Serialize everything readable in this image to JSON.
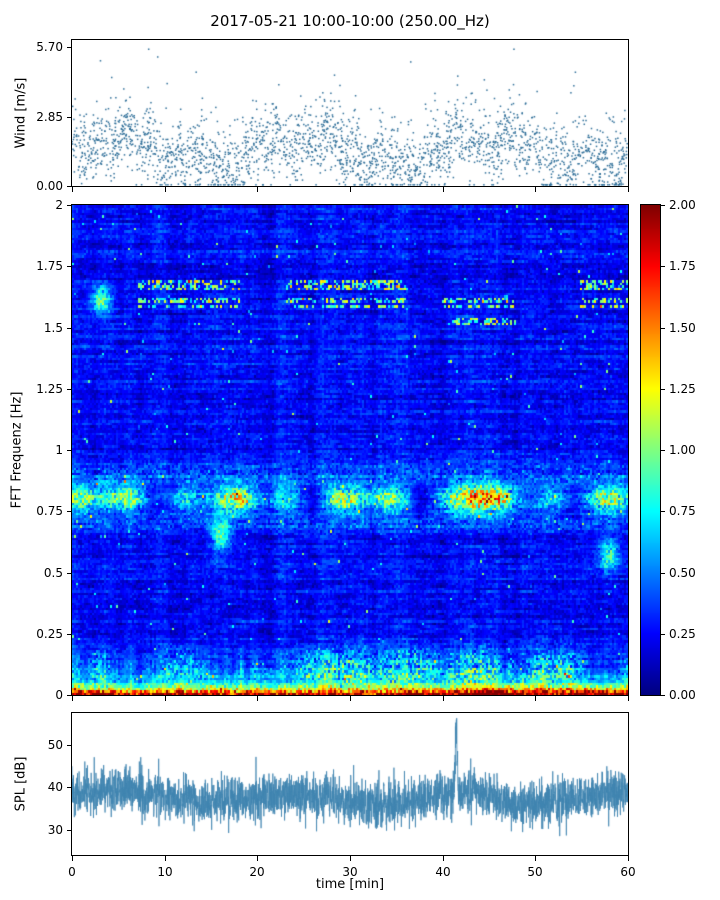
{
  "title": "2017-05-21 10:00-10:00 (250.00_Hz)",
  "chart_data": [
    {
      "type": "scatter",
      "name": "wind-speed",
      "ylabel": "Wind [m/s]",
      "xlim": [
        0,
        60
      ],
      "ylim": [
        0,
        6.0
      ],
      "yticks": [
        "0.00",
        "2.85",
        "5.70"
      ],
      "ytick_values": [
        0,
        2.85,
        5.7
      ],
      "marker_color": "#2e6e98",
      "n_points": 2600,
      "summary": {
        "mean": 1.7,
        "min": 0.05,
        "max": 5.65,
        "description": "dense noisy wind-speed scatter, gusty clusters, occasional gusts to ~5.6 m/s"
      }
    },
    {
      "type": "heatmap",
      "name": "fft-spectrogram",
      "ylabel": "FFT Frequenz [Hz]",
      "xlim": [
        0,
        60
      ],
      "ylim": [
        0,
        2
      ],
      "yticks": [
        "0",
        "0.25",
        "0.5",
        "0.75",
        "1",
        "1.25",
        "1.5",
        "1.75",
        "2"
      ],
      "ytick_values": [
        0,
        0.25,
        0.5,
        0.75,
        1,
        1.25,
        1.5,
        1.75,
        2
      ],
      "colormap": "jet",
      "clim": [
        0,
        2
      ],
      "colorbar_ticks": [
        "0.00",
        "0.25",
        "0.50",
        "0.75",
        "1.00",
        "1.25",
        "1.50",
        "1.75",
        "2.00"
      ],
      "colorbar_tick_values": [
        0,
        0.25,
        0.5,
        0.75,
        1,
        1.25,
        1.5,
        1.75,
        2
      ],
      "features": {
        "background_level": 0.25,
        "bands": [
          {
            "freq": 0.8,
            "sigma": 0.04,
            "level": 0.9,
            "note": "persistent cyan/green band across all times, strongest (yellow) near t=42-46 min"
          },
          {
            "freq": 0.9,
            "sigma": 0.03,
            "level": 0.3
          },
          {
            "freq": 0.7,
            "sigma": 0.03,
            "level": 0.25
          },
          {
            "freq": 0.1,
            "sigma": 0.06,
            "level": 0.8,
            "note": "intermittent green mottling just above bottom band"
          },
          {
            "freq": 0.0,
            "sigma": 0.035,
            "level": 1.9,
            "note": "saturated orange/red/dark-red band along the bottom edge"
          }
        ],
        "patches": [
          [
            7,
            18,
            1.55,
            1.72
          ],
          [
            23,
            36,
            1.58,
            1.71
          ],
          [
            40,
            48,
            1.5,
            1.66
          ],
          [
            55,
            60,
            1.56,
            1.7
          ]
        ],
        "blobs": [
          [
            16,
            0.65
          ],
          [
            58,
            0.57
          ],
          [
            3,
            1.62
          ]
        ]
      }
    },
    {
      "type": "line",
      "name": "spl",
      "ylabel": "SPL [dB]",
      "xlabel": "time [min]",
      "xlim": [
        0,
        60
      ],
      "ylim": [
        24,
        57.5
      ],
      "yticks": [
        "30",
        "40",
        "50"
      ],
      "ytick_values": [
        30,
        40,
        50
      ],
      "xticks": [
        "0",
        "10",
        "20",
        "30",
        "40",
        "50",
        "60"
      ],
      "xtick_values": [
        0,
        10,
        20,
        30,
        40,
        50,
        60
      ],
      "line_color": "#3f84b0",
      "summary": {
        "mean": 38,
        "typical_range": [
          32,
          46
        ],
        "peak": {
          "t": 41.4,
          "value": 55
        },
        "dip": {
          "t": 51.5,
          "value": 27
        }
      }
    }
  ]
}
